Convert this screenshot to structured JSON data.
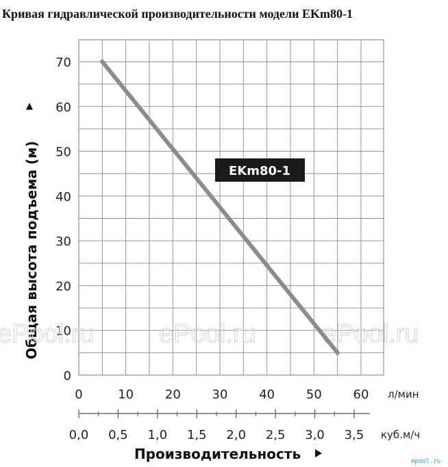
{
  "title": "Кривая гидравлической производительности модели EKm80-1",
  "chart_data": {
    "type": "line",
    "ylabel": "Общая высота подъема (м)",
    "xlabel": "Производительность",
    "ylim": [
      0,
      70
    ],
    "yticks": [
      "0",
      "10",
      "20",
      "30",
      "40",
      "50",
      "60",
      "70"
    ],
    "xlim": [
      0,
      60
    ],
    "xticks": [
      "0",
      "10",
      "20",
      "30",
      "40",
      "50",
      "60"
    ],
    "x_unit": "л/мин",
    "x2_ticks": [
      "0,0",
      "0,5",
      "1,0",
      "1,5",
      "2,0",
      "2,5",
      "3,0",
      "3,5"
    ],
    "x2_unit": "куб.м/ч",
    "grid": true,
    "series": [
      {
        "name": "EKm80-1",
        "color": "#8c8c8c",
        "x": [
          5,
          55
        ],
        "y": [
          70,
          5
        ]
      }
    ]
  },
  "watermarks": [
    "ePool.ru",
    "ePool.ru",
    "ePool.ru"
  ],
  "logo": "epool.ru"
}
